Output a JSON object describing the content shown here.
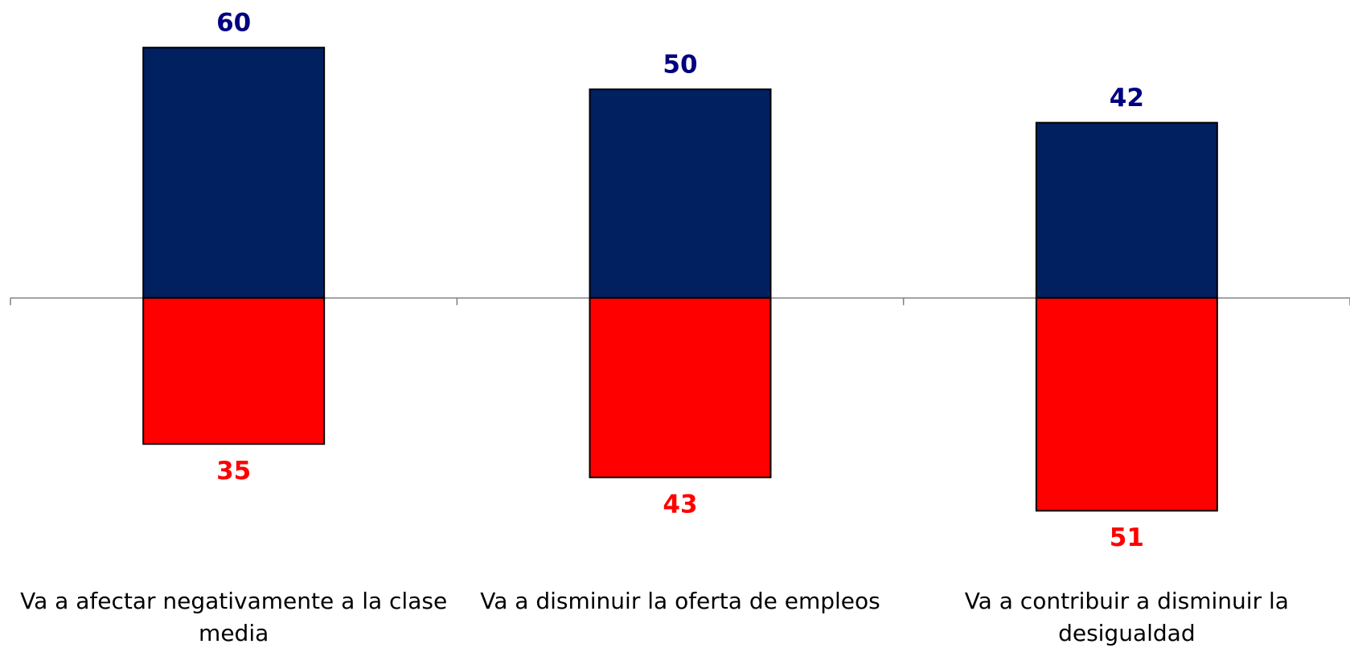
{
  "chart_data": {
    "type": "diverging_bar",
    "categories": [
      "Va a afectar negativamente a la clase media",
      "Va a disminuir la oferta de empleos",
      "Va a contribuir a disminuir la desigualdad"
    ],
    "series": [
      {
        "color": "#002060",
        "label_color": "#000080",
        "values": [
          60,
          50,
          42
        ]
      },
      {
        "color": "#ff0000",
        "label_color": "#ff0000",
        "values": [
          35,
          43,
          51
        ]
      }
    ]
  }
}
